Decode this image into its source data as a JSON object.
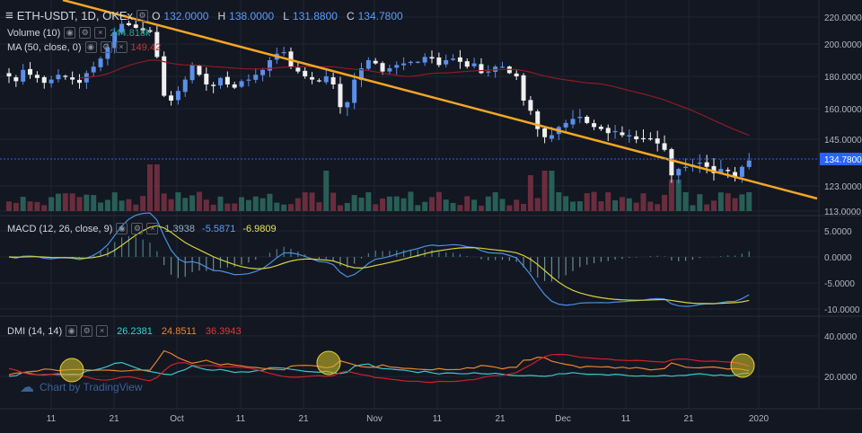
{
  "legend": {
    "symbol": "ETH-USDT, 1D, OKEx",
    "ohlc": [
      {
        "k": "O",
        "v": "132.0000"
      },
      {
        "k": "H",
        "v": "138.0000"
      },
      {
        "k": "L",
        "v": "131.8800"
      },
      {
        "k": "C",
        "v": "134.7800"
      }
    ],
    "volume_label": "Volume (10)",
    "volume_value": "244.818k",
    "ma_label": "MA (50, close, 0)",
    "ma_value": "149.42",
    "macd_label": "MACD (12, 26, close, 9)",
    "macd_values": [
      "1.3938",
      "-5.5871",
      "-6.9809"
    ],
    "dmi_label": "DMI (14, 14)",
    "dmi_values": [
      "26.2381",
      "24.8511",
      "36.3943"
    ]
  },
  "watermark": "Chart by TradingView",
  "colors": {
    "background": "#131722",
    "up": "#5b8fe8",
    "down": "#f0f0f0",
    "ma": "#8e1b22",
    "trendline": "#f5a623",
    "macd": "#4a90e2",
    "signal": "#d4d43a",
    "plus_di": "#3cc8c8",
    "minus_di": "#e8852e",
    "adx": "#d21f2a",
    "highlight": "#c8b828"
  },
  "chart_data": [
    {
      "type": "candlestick",
      "panel": "price",
      "symbol": "ETH-USDT",
      "interval": "1D",
      "exchange": "OKEx",
      "x_ticks": [
        "11",
        "21",
        "Oct",
        "11",
        "21",
        "Nov",
        "11",
        "21",
        "Dec",
        "11",
        "21",
        "2020"
      ],
      "y_ticks": [
        "220.0000",
        "200.0000",
        "180.0000",
        "160.0000",
        "145.0000",
        "123.0000",
        "113.0000"
      ],
      "last_price": "134.7800",
      "closes": [
        180,
        177,
        184,
        181,
        179,
        176,
        178,
        181,
        180,
        178,
        176,
        182,
        186,
        191,
        198,
        209,
        215,
        214,
        212,
        210,
        209,
        192,
        168,
        165,
        171,
        178,
        187,
        181,
        175,
        174,
        179,
        175,
        173,
        177,
        178,
        181,
        184,
        190,
        194,
        195,
        186,
        183,
        180,
        178,
        177,
        180,
        175,
        161,
        164,
        178,
        185,
        190,
        188,
        183,
        185,
        187,
        188,
        189,
        189,
        192,
        191,
        187,
        190,
        191,
        189,
        186,
        188,
        182,
        183,
        186,
        186,
        182,
        180,
        165,
        159,
        150,
        146,
        147,
        151,
        153,
        155,
        156,
        153,
        151,
        150,
        148,
        149,
        147,
        147,
        145,
        145,
        145,
        143,
        140,
        128,
        131,
        132,
        133,
        134,
        132,
        129,
        131,
        130,
        127,
        132,
        135
      ]
    },
    {
      "type": "line",
      "panel": "price",
      "series": [
        {
          "name": "MA (50, close, 0)",
          "last": 149.42
        }
      ]
    },
    {
      "type": "bar",
      "panel": "volume",
      "series": [
        {
          "name": "Volume (10)",
          "last": "244.818k"
        }
      ]
    },
    {
      "type": "line",
      "panel": "macd",
      "y_ticks": [
        "5.0000",
        "0.0000",
        "-5.0000",
        "-10.0000"
      ],
      "series": [
        {
          "name": "Histogram",
          "last": 1.3938
        },
        {
          "name": "MACD",
          "last": -5.5871
        },
        {
          "name": "Signal",
          "last": -6.9809
        }
      ]
    },
    {
      "type": "line",
      "panel": "dmi",
      "y_ticks": [
        "40.0000",
        "20.0000"
      ],
      "series": [
        {
          "name": "+DI",
          "last": 26.2381
        },
        {
          "name": "-DI",
          "last": 24.8511
        },
        {
          "name": "ADX",
          "last": 36.3943
        }
      ]
    }
  ]
}
